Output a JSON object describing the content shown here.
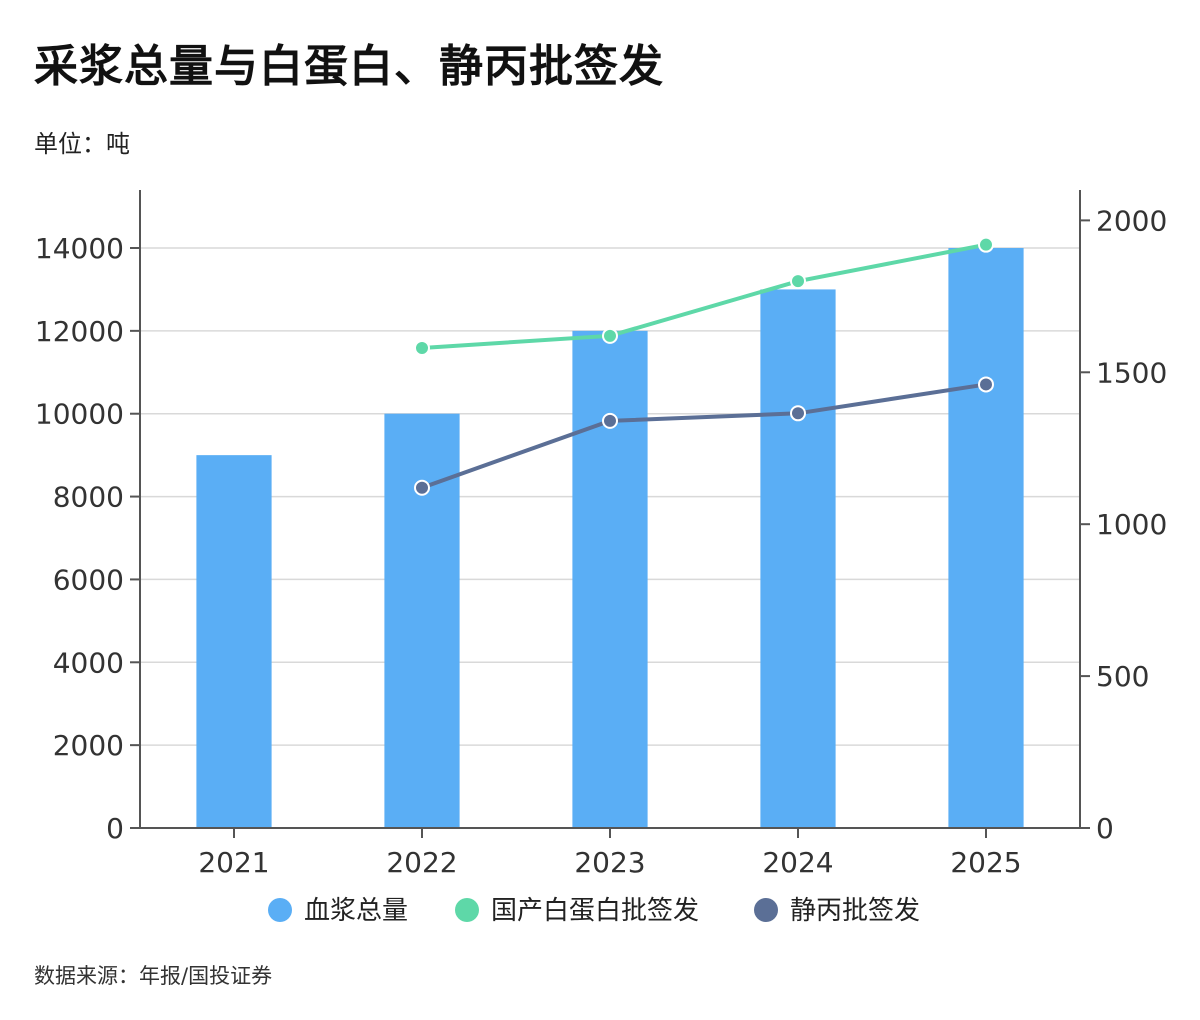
{
  "title": "采浆总量与白蛋白、静丙批签发",
  "unit": "单位：吨",
  "source": "数据来源：年报/国投证券",
  "colors": {
    "bar": "#5aaef5",
    "albumin": "#5ed8a8",
    "ivig": "#5b6f96",
    "grid": "#d9d9d9",
    "axis": "#555555"
  },
  "chart_data": {
    "type": "bar+line",
    "categories": [
      "2021",
      "2022",
      "2023",
      "2024",
      "2025"
    ],
    "left_axis": {
      "ylim": [
        0,
        15400
      ],
      "ticks": [
        0,
        2000,
        4000,
        6000,
        8000,
        10000,
        12000,
        14000
      ]
    },
    "right_axis": {
      "ylim": [
        0,
        2100
      ],
      "ticks": [
        0,
        500,
        1000,
        1500,
        2000
      ]
    },
    "series": [
      {
        "name": "血浆总量",
        "type": "bar",
        "axis": "left",
        "color_key": "bar",
        "values": [
          9000,
          10000,
          12000,
          13000,
          14000
        ]
      },
      {
        "name": "国产白蛋白批签发",
        "type": "line",
        "axis": "right",
        "color_key": "albumin",
        "values": [
          null,
          1580,
          1620,
          1800,
          1920
        ]
      },
      {
        "name": "静丙批签发",
        "type": "line",
        "axis": "right",
        "color_key": "ivig",
        "values": [
          null,
          1120,
          1340,
          1365,
          1460
        ]
      }
    ]
  }
}
